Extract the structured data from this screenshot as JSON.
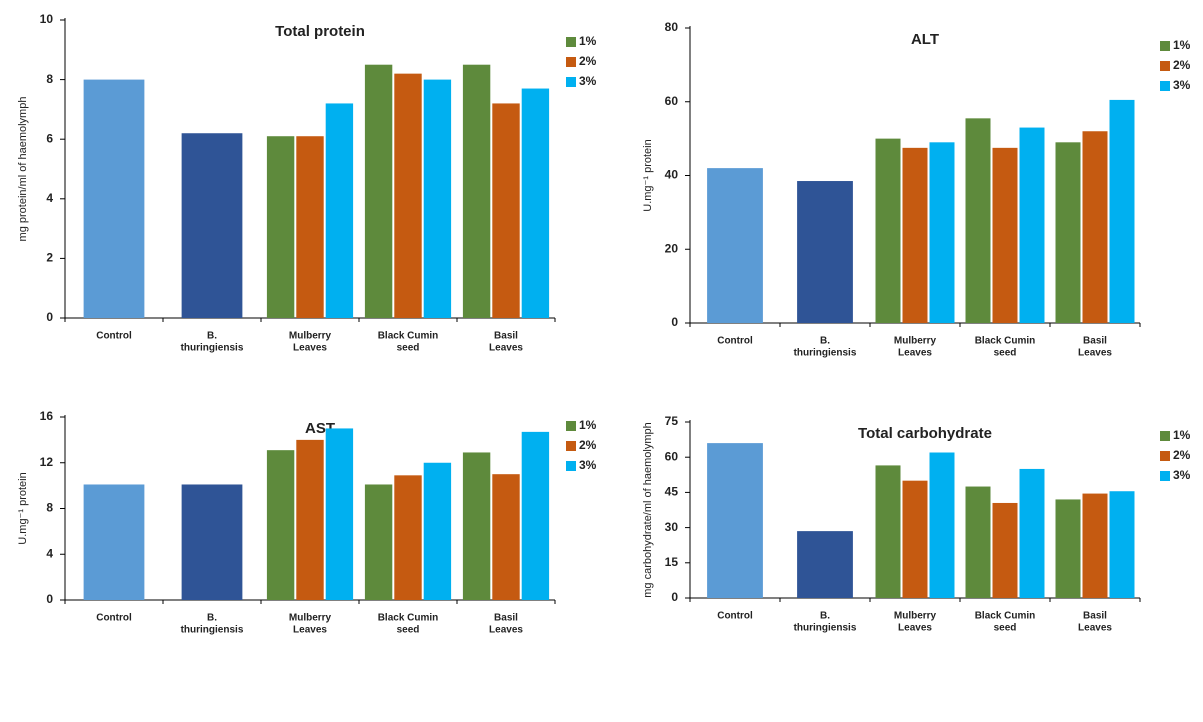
{
  "chart_data": [
    {
      "type": "bar",
      "title": "Total protein",
      "y_label": "mg protein/ml of haemolymph",
      "categories": [
        [
          "Control"
        ],
        [
          "B.",
          "thuringiensis"
        ],
        [
          "Mulberry",
          "Leaves"
        ],
        [
          "Black Cumin",
          "seed"
        ],
        [
          "Basil",
          "Leaves"
        ]
      ],
      "values": [
        8.0,
        6.2,
        null,
        null,
        null
      ],
      "colors": [
        "#5b9bd5",
        "#2f5496",
        null,
        null,
        null
      ],
      "series": [
        {
          "name": "1%",
          "color": "#5e8a3c",
          "values": [
            null,
            null,
            6.1,
            8.5,
            8.5
          ]
        },
        {
          "name": "2%",
          "color": "#c55a11",
          "values": [
            null,
            null,
            6.1,
            8.2,
            7.2
          ]
        },
        {
          "name": "3%",
          "color": "#00b0f0",
          "values": [
            null,
            null,
            7.2,
            8.0,
            7.7
          ]
        }
      ],
      "ylim": [
        0,
        10
      ],
      "yticks": [
        0,
        2,
        4,
        6,
        8,
        10
      ],
      "grid": false,
      "legend": "upper right"
    },
    {
      "type": "bar",
      "title": "ALT",
      "y_label": "U.mg⁻¹ protein",
      "categories": [
        [
          "Control"
        ],
        [
          "B.",
          "thuringiensis"
        ],
        [
          "Mulberry",
          "Leaves"
        ],
        [
          "Black Cumin",
          "seed"
        ],
        [
          "Basil",
          "Leaves"
        ]
      ],
      "values": [
        42,
        38.5,
        null,
        null,
        null
      ],
      "colors": [
        "#5b9bd5",
        "#2f5496",
        null,
        null,
        null
      ],
      "series": [
        {
          "name": "1%",
          "color": "#5e8a3c",
          "values": [
            null,
            null,
            50,
            55.5,
            49
          ]
        },
        {
          "name": "2%",
          "color": "#c55a11",
          "values": [
            null,
            null,
            47.5,
            47.5,
            52
          ]
        },
        {
          "name": "3%",
          "color": "#00b0f0",
          "values": [
            null,
            null,
            49,
            53,
            60.5
          ]
        }
      ],
      "ylim": [
        0,
        80
      ],
      "yticks": [
        0,
        20,
        40,
        60,
        80
      ],
      "grid": false,
      "legend": "upper right"
    },
    {
      "type": "bar",
      "title": "AST",
      "y_label": "U.mg⁻¹ protein",
      "categories": [
        [
          "Control"
        ],
        [
          "B.",
          "thuringiensis"
        ],
        [
          "Mulberry",
          "Leaves"
        ],
        [
          "Black Cumin",
          "seed"
        ],
        [
          "Basil",
          "Leaves"
        ]
      ],
      "values": [
        10.1,
        10.1,
        null,
        null,
        null
      ],
      "colors": [
        "#5b9bd5",
        "#2f5496",
        null,
        null,
        null
      ],
      "series": [
        {
          "name": "1%",
          "color": "#5e8a3c",
          "values": [
            null,
            null,
            13.1,
            10.1,
            12.9
          ]
        },
        {
          "name": "2%",
          "color": "#c55a11",
          "values": [
            null,
            null,
            14,
            10.9,
            11
          ]
        },
        {
          "name": "3%",
          "color": "#00b0f0",
          "values": [
            null,
            null,
            15,
            12,
            14.7
          ]
        }
      ],
      "ylim": [
        0,
        16
      ],
      "yticks": [
        0,
        4,
        8,
        12,
        16
      ],
      "grid": false,
      "legend": "upper right"
    },
    {
      "type": "bar",
      "title": "Total carbohydrate",
      "y_label": "mg carbohydrate/ml of haemolymph",
      "categories": [
        [
          "Control"
        ],
        [
          "B.",
          "thuringiensis"
        ],
        [
          "Mulberry",
          "Leaves"
        ],
        [
          "Black Cumin",
          "seed"
        ],
        [
          "Basil",
          "Leaves"
        ]
      ],
      "values": [
        66,
        28.5,
        null,
        null,
        null
      ],
      "colors": [
        "#5b9bd5",
        "#2f5496",
        null,
        null,
        null
      ],
      "series": [
        {
          "name": "1%",
          "color": "#5e8a3c",
          "values": [
            null,
            null,
            56.5,
            47.5,
            42
          ]
        },
        {
          "name": "2%",
          "color": "#c55a11",
          "values": [
            null,
            null,
            50,
            40.5,
            44.5
          ]
        },
        {
          "name": "3%",
          "color": "#00b0f0",
          "values": [
            null,
            null,
            62,
            55,
            45.5
          ]
        }
      ],
      "ylim": [
        0,
        75
      ],
      "yticks": [
        0,
        15,
        30,
        45,
        60,
        75
      ],
      "grid": false,
      "legend": "upper right"
    }
  ]
}
